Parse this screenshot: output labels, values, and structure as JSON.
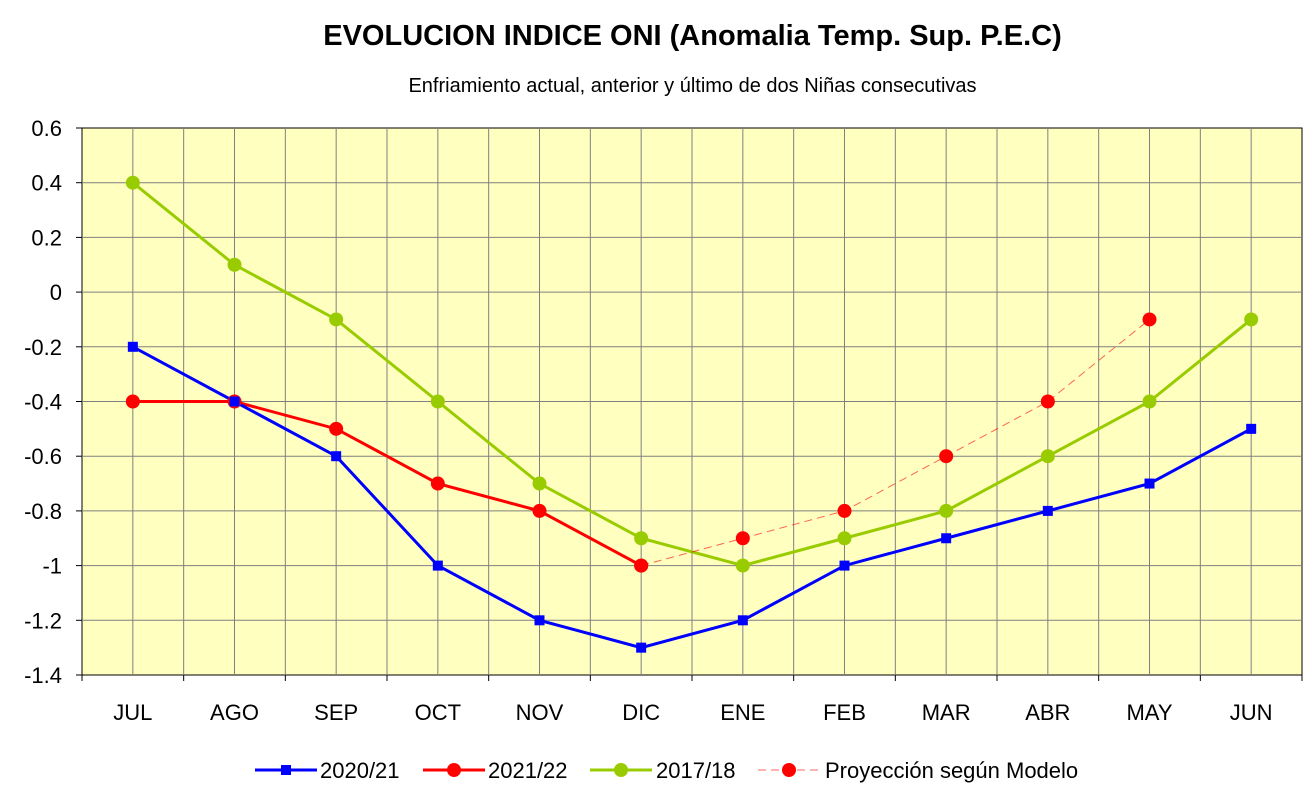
{
  "chart_data": {
    "type": "line",
    "title": "EVOLUCION INDICE ONI (Anomalia Temp. Sup. P.E.C)",
    "subtitle": "Enfriamiento actual, anterior y último de dos Niñas consecutivas",
    "xlabel": "",
    "ylabel": "",
    "categories": [
      "JUL",
      "AGO",
      "SEP",
      "OCT",
      "NOV",
      "DIC",
      "ENE",
      "FEB",
      "MAR",
      "ABR",
      "MAY",
      "JUN"
    ],
    "ylim": [
      -1.4,
      0.6
    ],
    "yticks": [
      0.6,
      0.4,
      0.2,
      0,
      -0.2,
      -0.4,
      -0.6,
      -0.8,
      -1,
      -1.2,
      -1.4
    ],
    "grid": true,
    "legend_position": "bottom",
    "colors": {
      "plot_background": "#ffffc0",
      "grid": "#808080"
    },
    "series": [
      {
        "name": "2020/21",
        "color": "#0000ff",
        "marker": "square",
        "line": "solid",
        "values": [
          -0.2,
          -0.4,
          -0.6,
          -1.0,
          -1.2,
          -1.3,
          -1.2,
          -1.0,
          -0.9,
          -0.8,
          -0.7,
          -0.5
        ]
      },
      {
        "name": "2021/22",
        "color": "#ff0000",
        "marker": "circle",
        "line": "solid",
        "values": [
          -0.4,
          -0.4,
          -0.5,
          -0.7,
          -0.8,
          -1.0,
          null,
          null,
          null,
          null,
          null,
          null
        ]
      },
      {
        "name": "2017/18",
        "color": "#99cc00",
        "marker": "circle",
        "line": "solid",
        "values": [
          0.4,
          0.1,
          -0.1,
          -0.4,
          -0.7,
          -0.9,
          -1.0,
          -0.9,
          -0.8,
          -0.6,
          -0.4,
          -0.1
        ]
      },
      {
        "name": "Proyección según Modelo",
        "color": "#ff0000",
        "marker": "circle",
        "line": "dashed-thin",
        "values": [
          null,
          null,
          null,
          null,
          null,
          -1.0,
          -0.9,
          -0.8,
          -0.6,
          -0.4,
          -0.1,
          null
        ]
      }
    ]
  }
}
